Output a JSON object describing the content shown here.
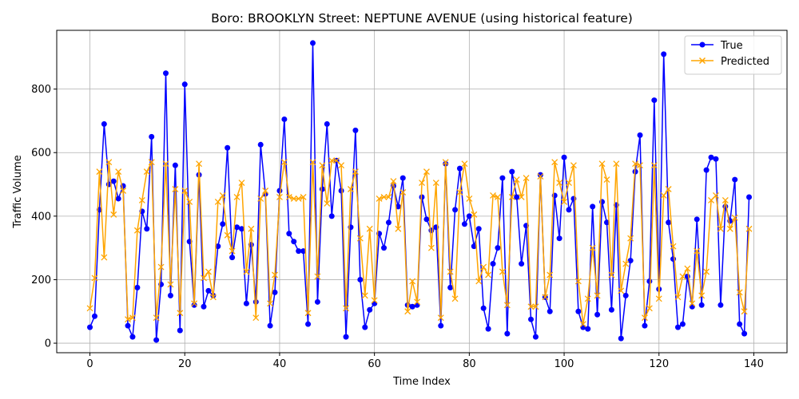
{
  "chart_data": {
    "type": "line",
    "title": "Boro: BROOKLYN Street: NEPTUNE AVENUE (using historical feature)",
    "xlabel": "Time Index",
    "ylabel": "Traffic Volume",
    "xlim": [
      -7,
      147
    ],
    "ylim": [
      -30,
      985
    ],
    "xticks": [
      0,
      20,
      40,
      60,
      80,
      100,
      120,
      140
    ],
    "yticks": [
      0,
      200,
      400,
      600,
      800
    ],
    "grid": true,
    "legend_position": "top-right",
    "series": [
      {
        "name": "True",
        "color": "#0000ff",
        "marker": "circle",
        "values": [
          50,
          85,
          420,
          690,
          500,
          510,
          455,
          495,
          55,
          20,
          175,
          415,
          360,
          650,
          10,
          185,
          850,
          150,
          560,
          40,
          815,
          320,
          120,
          530,
          115,
          165,
          150,
          305,
          375,
          615,
          270,
          365,
          360,
          125,
          310,
          130,
          625,
          470,
          55,
          160,
          480,
          705,
          345,
          320,
          290,
          290,
          60,
          945,
          130,
          485,
          690,
          400,
          575,
          480,
          20,
          365,
          670,
          200,
          50,
          105,
          125,
          345,
          300,
          380,
          495,
          430,
          520,
          120,
          115,
          120,
          460,
          390,
          355,
          365,
          55,
          565,
          175,
          420,
          550,
          375,
          400,
          305,
          360,
          110,
          45,
          250,
          300,
          520,
          30,
          540,
          460,
          250,
          370,
          75,
          20,
          530,
          145,
          100,
          465,
          330,
          585,
          420,
          455,
          100,
          50,
          45,
          430,
          90,
          445,
          380,
          105,
          435,
          15,
          150,
          260,
          540,
          655,
          55,
          195,
          765,
          170,
          910,
          380,
          265,
          50,
          60,
          210,
          115,
          390,
          120,
          545,
          585,
          580,
          120,
          430,
          385,
          515,
          60,
          30,
          460
        ]
      },
      {
        "name": "Predicted",
        "color": "#ffa500",
        "marker": "x",
        "values": [
          110,
          205,
          540,
          270,
          570,
          405,
          540,
          480,
          75,
          80,
          355,
          450,
          540,
          570,
          80,
          240,
          565,
          185,
          485,
          95,
          480,
          445,
          125,
          565,
          205,
          225,
          145,
          445,
          465,
          340,
          290,
          460,
          505,
          225,
          360,
          80,
          455,
          480,
          125,
          215,
          460,
          570,
          460,
          455,
          455,
          460,
          95,
          570,
          210,
          560,
          440,
          575,
          575,
          560,
          110,
          485,
          540,
          330,
          150,
          360,
          135,
          455,
          460,
          460,
          510,
          360,
          475,
          100,
          195,
          130,
          505,
          540,
          300,
          505,
          80,
          570,
          225,
          140,
          475,
          565,
          455,
          405,
          195,
          240,
          215,
          465,
          460,
          225,
          120,
          460,
          515,
          460,
          520,
          115,
          115,
          525,
          145,
          215,
          570,
          505,
          445,
          505,
          560,
          195,
          60,
          140,
          300,
          150,
          565,
          515,
          215,
          565,
          165,
          250,
          330,
          565,
          560,
          80,
          110,
          560,
          140,
          465,
          485,
          305,
          145,
          210,
          235,
          125,
          290,
          150,
          225,
          450,
          465,
          360,
          450,
          360,
          395,
          160,
          100,
          360
        ]
      }
    ]
  }
}
